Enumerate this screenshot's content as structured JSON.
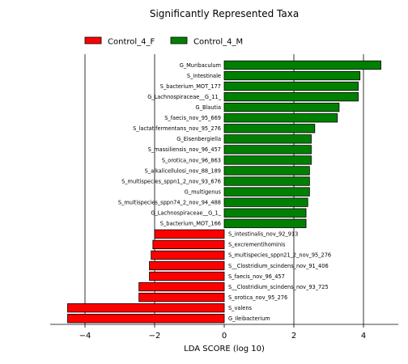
{
  "chart_data": {
    "type": "bar",
    "orientation": "horizontal",
    "title": "Significantly Represented Taxa",
    "xlabel": "LDA SCORE (log 10)",
    "ylabel": "",
    "xlim": [
      -5,
      5
    ],
    "xticks": [
      -4,
      -2,
      0,
      2,
      4
    ],
    "xtick_labels": [
      "−4",
      "−2",
      "0",
      "2",
      "4"
    ],
    "grid": "vertical lines at x = -4, -2, 2, 4",
    "legend_position": "top-left",
    "series": [
      {
        "name": "Control_4_F",
        "color": "#ff0000"
      },
      {
        "name": "Control_4_M",
        "color": "#008000"
      }
    ],
    "bars": [
      {
        "label": "G_Muribaculum",
        "value": 4.5,
        "series": "Control_4_M"
      },
      {
        "label": "S_intestinale",
        "value": 3.9,
        "series": "Control_4_M"
      },
      {
        "label": "S_bacterium_MOT_177",
        "value": 3.85,
        "series": "Control_4_M"
      },
      {
        "label": "G_Lachnospiraceae__G_11_",
        "value": 3.85,
        "series": "Control_4_M"
      },
      {
        "label": "G_Blautia",
        "value": 3.3,
        "series": "Control_4_M"
      },
      {
        "label": "S_faecis_nov_95_669",
        "value": 3.25,
        "series": "Control_4_M"
      },
      {
        "label": "S_lactatifermentans_nov_95_276",
        "value": 2.6,
        "series": "Control_4_M"
      },
      {
        "label": "G_Eisenbergiella",
        "value": 2.5,
        "series": "Control_4_M"
      },
      {
        "label": "S_massiliensis_nov_96_457",
        "value": 2.5,
        "series": "Control_4_M"
      },
      {
        "label": "S_orotica_nov_96_863",
        "value": 2.5,
        "series": "Control_4_M"
      },
      {
        "label": "S_alkalicellulosi_nov_88_189",
        "value": 2.45,
        "series": "Control_4_M"
      },
      {
        "label": "S_multispecies_sppn1_2_nov_93_676",
        "value": 2.45,
        "series": "Control_4_M"
      },
      {
        "label": "G_multigenus",
        "value": 2.45,
        "series": "Control_4_M"
      },
      {
        "label": "S_multispecies_sppn74_2_nov_94_488",
        "value": 2.4,
        "series": "Control_4_M"
      },
      {
        "label": "G_Lachnospiraceae__G_1_",
        "value": 2.35,
        "series": "Control_4_M"
      },
      {
        "label": "S_bacterium_MOT_166",
        "value": 2.35,
        "series": "Control_4_M"
      },
      {
        "label": "S_intestinalis_nov_92_913",
        "value": -2.0,
        "series": "Control_4_F"
      },
      {
        "label": "S_excrementihominis",
        "value": -2.05,
        "series": "Control_4_F"
      },
      {
        "label": "S_multispecies_sppn21_2_nov_95_276",
        "value": -2.1,
        "series": "Control_4_F"
      },
      {
        "label": "S__Clostridium_scindens_nov_91_406",
        "value": -2.15,
        "series": "Control_4_F"
      },
      {
        "label": "S_faecis_nov_96_457",
        "value": -2.15,
        "series": "Control_4_F"
      },
      {
        "label": "S__Clostridium_scindens_nov_93_725",
        "value": -2.45,
        "series": "Control_4_F"
      },
      {
        "label": "S_orotica_nov_95_276",
        "value": -2.45,
        "series": "Control_4_F"
      },
      {
        "label": "S_valens",
        "value": -4.5,
        "series": "Control_4_F"
      },
      {
        "label": "G_Ileibacterium",
        "value": -4.5,
        "series": "Control_4_F"
      }
    ]
  }
}
